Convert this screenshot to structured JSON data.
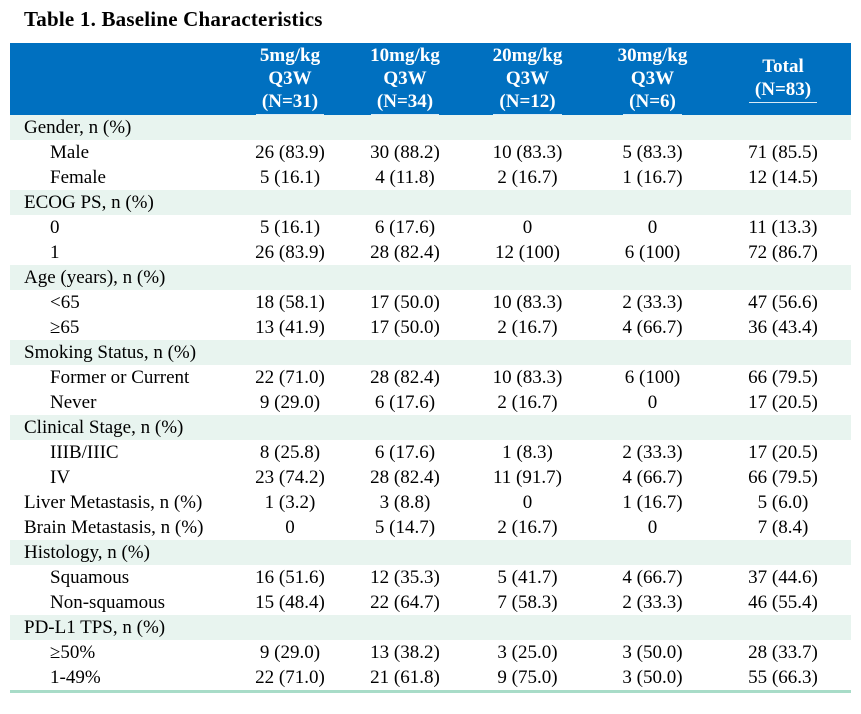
{
  "title": "Table 1. Baseline Characteristics",
  "colors": {
    "header_bg": "#0070C0",
    "section_bg": "#e8f4ef",
    "bottom_border": "#a8dcc8",
    "header_text": "#ffffff",
    "body_text": "#000000"
  },
  "table": {
    "columns": [
      {
        "dose": "5mg/kg",
        "sched": "Q3W",
        "n": "(N=31)"
      },
      {
        "dose": "10mg/kg",
        "sched": "Q3W",
        "n": "(N=34)"
      },
      {
        "dose": "20mg/kg",
        "sched": "Q3W",
        "n": "(N=12)"
      },
      {
        "dose": "30mg/kg",
        "sched": "Q3W",
        "n": "(N=6)"
      },
      {
        "dose": "Total",
        "sched": "",
        "n": "(N=83)"
      }
    ],
    "rows": [
      {
        "type": "section",
        "indent": false,
        "label": "Gender, n (%)",
        "values": [
          "",
          "",
          "",
          "",
          ""
        ]
      },
      {
        "type": "data",
        "indent": true,
        "label": "Male",
        "values": [
          "26 (83.9)",
          "30 (88.2)",
          "10 (83.3)",
          "5 (83.3)",
          "71 (85.5)"
        ]
      },
      {
        "type": "data",
        "indent": true,
        "label": "Female",
        "values": [
          "5 (16.1)",
          "4 (11.8)",
          "2 (16.7)",
          "1 (16.7)",
          "12 (14.5)"
        ]
      },
      {
        "type": "section",
        "indent": false,
        "label": "ECOG PS, n (%)",
        "values": [
          "",
          "",
          "",
          "",
          ""
        ]
      },
      {
        "type": "data",
        "indent": true,
        "label": "0",
        "values": [
          "5 (16.1)",
          "6 (17.6)",
          "0",
          "0",
          "11 (13.3)"
        ]
      },
      {
        "type": "data",
        "indent": true,
        "label": "1",
        "values": [
          "26 (83.9)",
          "28 (82.4)",
          "12 (100)",
          "6 (100)",
          "72 (86.7)"
        ]
      },
      {
        "type": "section",
        "indent": false,
        "label": "Age (years), n (%)",
        "values": [
          "",
          "",
          "",
          "",
          ""
        ]
      },
      {
        "type": "data",
        "indent": true,
        "label": "<65",
        "values": [
          "18 (58.1)",
          "17 (50.0)",
          "10 (83.3)",
          "2 (33.3)",
          "47 (56.6)"
        ]
      },
      {
        "type": "data",
        "indent": true,
        "label": "≥65",
        "values": [
          "13 (41.9)",
          "17 (50.0)",
          "2 (16.7)",
          "4 (66.7)",
          "36 (43.4)"
        ]
      },
      {
        "type": "section",
        "indent": false,
        "label": "Smoking Status, n (%)",
        "values": [
          "",
          "",
          "",
          "",
          ""
        ]
      },
      {
        "type": "data",
        "indent": true,
        "label": "Former or Current",
        "values": [
          "22 (71.0)",
          "28 (82.4)",
          "10 (83.3)",
          "6 (100)",
          "66 (79.5)"
        ]
      },
      {
        "type": "data",
        "indent": true,
        "label": "Never",
        "values": [
          "9 (29.0)",
          "6 (17.6)",
          "2 (16.7)",
          "0",
          "17 (20.5)"
        ]
      },
      {
        "type": "section",
        "indent": false,
        "label": "Clinical Stage, n (%)",
        "values": [
          "",
          "",
          "",
          "",
          ""
        ]
      },
      {
        "type": "data",
        "indent": true,
        "label": "IIIB/IIIC",
        "values": [
          "8 (25.8)",
          "6 (17.6)",
          "1 (8.3)",
          "2 (33.3)",
          "17 (20.5)"
        ]
      },
      {
        "type": "data",
        "indent": true,
        "label": "IV",
        "values": [
          "23 (74.2)",
          "28 (82.4)",
          "11 (91.7)",
          "4 (66.7)",
          "66 (79.5)"
        ]
      },
      {
        "type": "data",
        "indent": false,
        "label": "Liver Metastasis, n (%)",
        "values": [
          "1 (3.2)",
          "3 (8.8)",
          "0",
          "1 (16.7)",
          "5 (6.0)"
        ]
      },
      {
        "type": "data",
        "indent": false,
        "label": "Brain Metastasis, n (%)",
        "values": [
          "0",
          "5 (14.7)",
          "2 (16.7)",
          "0",
          "7 (8.4)"
        ]
      },
      {
        "type": "section",
        "indent": false,
        "label": "Histology, n (%)",
        "values": [
          "",
          "",
          "",
          "",
          ""
        ]
      },
      {
        "type": "data",
        "indent": true,
        "label": "Squamous",
        "values": [
          "16 (51.6)",
          "12 (35.3)",
          "5 (41.7)",
          "4 (66.7)",
          "37 (44.6)"
        ]
      },
      {
        "type": "data",
        "indent": true,
        "label": "Non-squamous",
        "values": [
          "15 (48.4)",
          "22 (64.7)",
          "7 (58.3)",
          "2 (33.3)",
          "46 (55.4)"
        ]
      },
      {
        "type": "section",
        "indent": false,
        "label": "PD-L1 TPS, n (%)",
        "values": [
          "",
          "",
          "",
          "",
          ""
        ]
      },
      {
        "type": "data",
        "indent": true,
        "label": "≥50%",
        "values": [
          "9 (29.0)",
          "13 (38.2)",
          "3 (25.0)",
          "3 (50.0)",
          "28 (33.7)"
        ]
      },
      {
        "type": "data",
        "indent": true,
        "label": "1-49%",
        "values": [
          "22 (71.0)",
          "21 (61.8)",
          "9 (75.0)",
          "3 (50.0)",
          "55 (66.3)"
        ]
      }
    ]
  }
}
